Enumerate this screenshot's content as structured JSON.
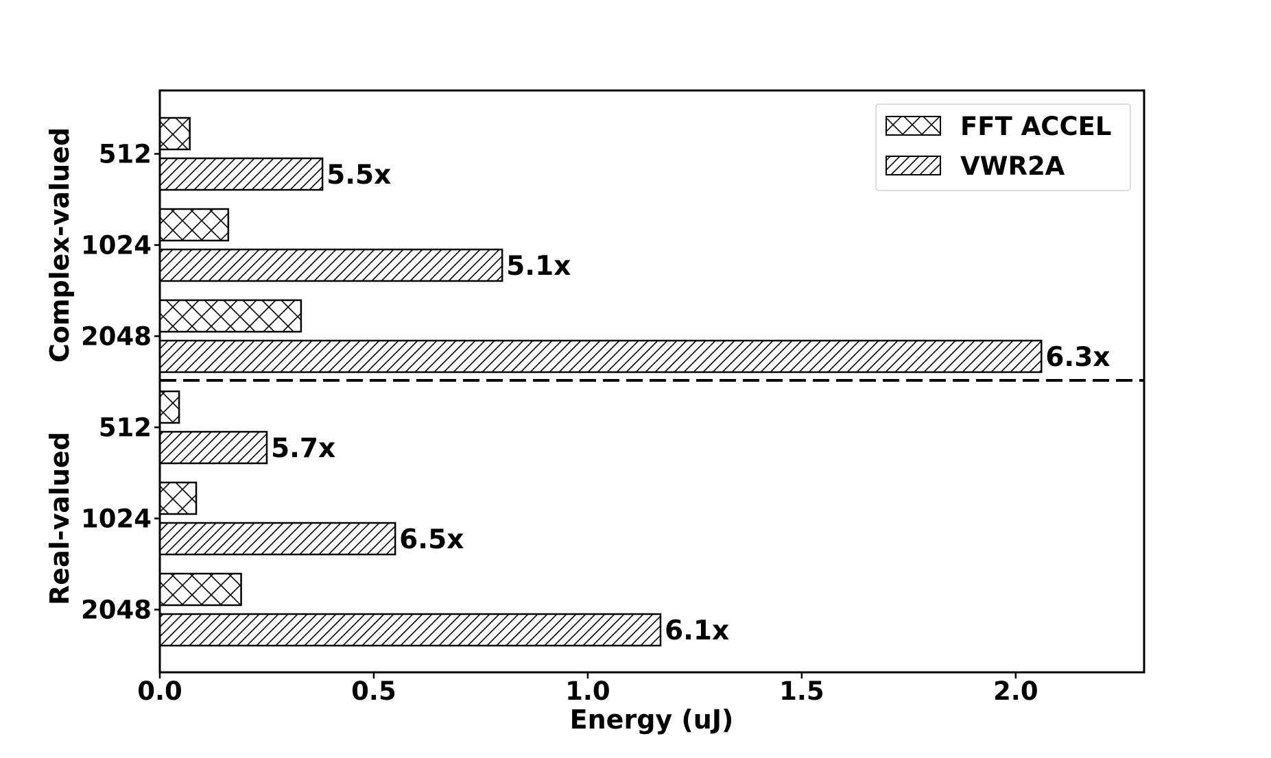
{
  "chart_data": {
    "type": "bar",
    "orientation": "horizontal",
    "xlabel": "Energy (uJ)",
    "xlim": [
      0,
      2.3
    ],
    "xticks": [
      0.0,
      0.5,
      1.0,
      1.5,
      2.0
    ],
    "xtick_labels": [
      "0.0",
      "0.5",
      "1.0",
      "1.5",
      "2.0"
    ],
    "legend_position": "top-right",
    "grid": false,
    "groups": [
      {
        "label": "Complex-valued",
        "categories": [
          "512",
          "1024",
          "2048"
        ]
      },
      {
        "label": "Real-valued",
        "categories": [
          "512",
          "1024",
          "2048"
        ]
      }
    ],
    "series": [
      {
        "name": "FFT ACCEL",
        "hatch": "cross",
        "values": [
          [
            0.07,
            0.16,
            0.33
          ],
          [
            0.045,
            0.085,
            0.19
          ]
        ]
      },
      {
        "name": "VWR2A",
        "hatch": "diagonal",
        "values": [
          [
            0.38,
            0.8,
            2.06
          ],
          [
            0.25,
            0.55,
            1.17
          ]
        ]
      }
    ],
    "annotations": [
      [
        "5.5x",
        "5.1x",
        "6.3x"
      ],
      [
        "5.7x",
        "6.5x",
        "6.1x"
      ]
    ],
    "separator": "dashed line between groups"
  }
}
